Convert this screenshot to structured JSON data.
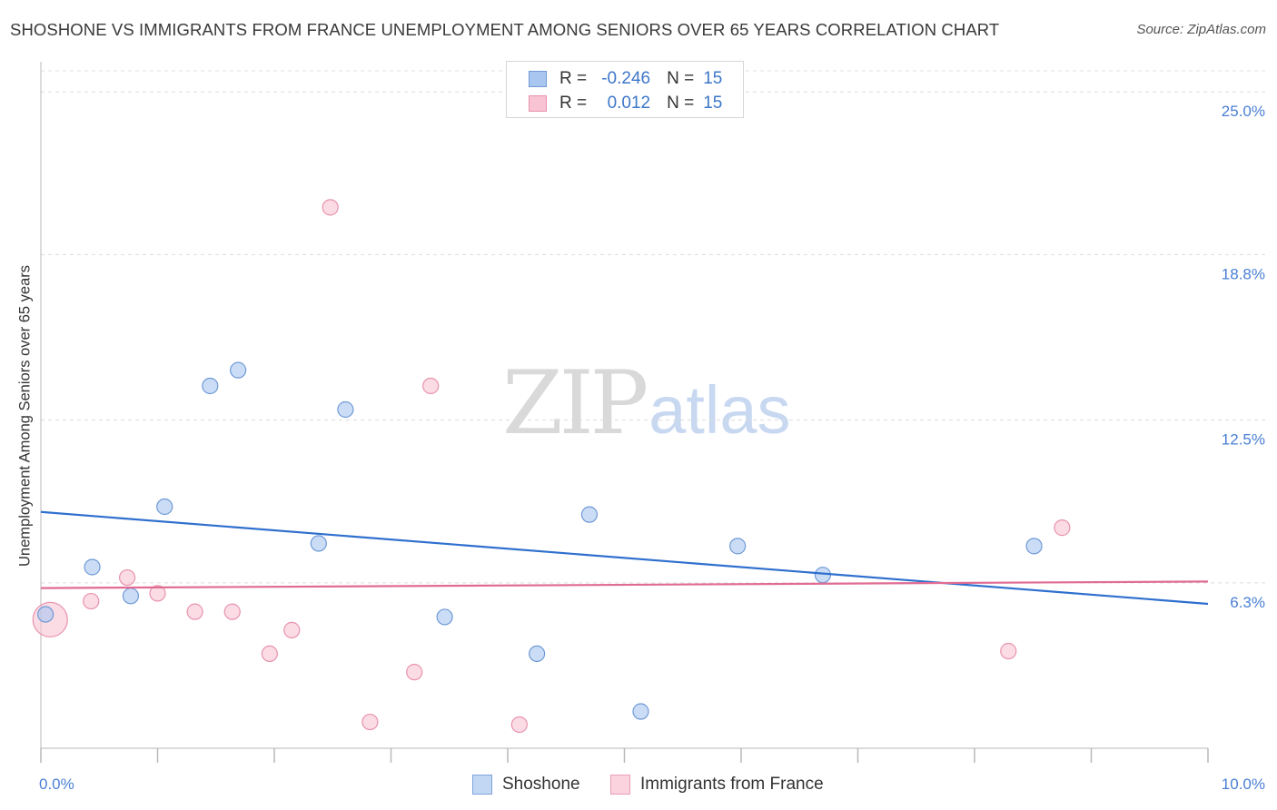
{
  "title": "SHOSHONE VS IMMIGRANTS FROM FRANCE UNEMPLOYMENT AMONG SENIORS OVER 65 YEARS CORRELATION CHART",
  "source": "Source: ZipAtlas.com",
  "watermark": {
    "zip": "ZIP",
    "atlas": "atlas"
  },
  "legend": {
    "rows": [
      {
        "r_label": "R =",
        "r_value": "-0.246",
        "n_label": "N =",
        "n_value": "15",
        "color": "#a9c6f0",
        "border": "#6f9ad6"
      },
      {
        "r_label": "R =",
        "r_value": "0.012",
        "n_label": "N =",
        "n_value": "15",
        "color": "#f8c4d4",
        "border": "#e892ad"
      }
    ]
  },
  "bottom_legend": {
    "items": [
      {
        "label": "Shoshone",
        "color": "#c2d7f4",
        "border": "#7ea4dc"
      },
      {
        "label": "Immigrants from France",
        "color": "#fbd3df",
        "border": "#ea9db4"
      }
    ]
  },
  "chart_data": {
    "type": "scatter",
    "title": "SHOSHONE VS IMMIGRANTS FROM FRANCE UNEMPLOYMENT AMONG SENIORS OVER 65 YEARS CORRELATION CHART",
    "xlabel": "",
    "ylabel": "Unemployment Among Seniors over 65 years",
    "xlim": [
      0,
      10
    ],
    "ylim": [
      0,
      25.8
    ],
    "x_tick_labels": [
      "0.0%",
      "10.0%"
    ],
    "y_ticks": [
      6.3,
      12.5,
      18.8,
      25.0
    ],
    "y_tick_labels": [
      "6.3%",
      "12.5%",
      "18.8%",
      "25.0%"
    ],
    "grid": true,
    "series": [
      {
        "name": "Shoshone",
        "color": "#a9c6f0",
        "stroke": "#6f9ad6",
        "line_color": "#2f6fce",
        "points": [
          {
            "x": 0.04,
            "y": 5.1
          },
          {
            "x": 0.44,
            "y": 6.9
          },
          {
            "x": 0.77,
            "y": 5.8
          },
          {
            "x": 1.06,
            "y": 9.2
          },
          {
            "x": 1.45,
            "y": 13.8
          },
          {
            "x": 1.69,
            "y": 14.4
          },
          {
            "x": 2.38,
            "y": 7.8
          },
          {
            "x": 2.61,
            "y": 12.9
          },
          {
            "x": 3.46,
            "y": 5.0
          },
          {
            "x": 4.25,
            "y": 3.6
          },
          {
            "x": 4.7,
            "y": 8.9
          },
          {
            "x": 5.14,
            "y": 1.4
          },
          {
            "x": 5.97,
            "y": 7.7
          },
          {
            "x": 6.7,
            "y": 6.6
          },
          {
            "x": 8.51,
            "y": 7.7
          }
        ],
        "trend": {
          "x": [
            0,
            10
          ],
          "y": [
            9.0,
            5.5
          ]
        }
      },
      {
        "name": "Immigrants from France",
        "color": "#f8c4d4",
        "stroke": "#e892ad",
        "line_color": "#e06c92",
        "points": [
          {
            "x": 0.08,
            "y": 4.9,
            "size": "large"
          },
          {
            "x": 0.43,
            "y": 5.6
          },
          {
            "x": 0.74,
            "y": 6.5
          },
          {
            "x": 1.0,
            "y": 5.9
          },
          {
            "x": 1.32,
            "y": 5.2
          },
          {
            "x": 1.64,
            "y": 5.2
          },
          {
            "x": 1.96,
            "y": 3.6
          },
          {
            "x": 2.15,
            "y": 4.5
          },
          {
            "x": 2.48,
            "y": 20.6
          },
          {
            "x": 2.82,
            "y": 1.0
          },
          {
            "x": 3.2,
            "y": 2.9
          },
          {
            "x": 3.34,
            "y": 13.8
          },
          {
            "x": 4.1,
            "y": 0.9
          },
          {
            "x": 8.29,
            "y": 3.7
          },
          {
            "x": 8.75,
            "y": 8.4
          }
        ],
        "trend": {
          "x": [
            0,
            10
          ],
          "y": [
            6.1,
            6.35
          ]
        }
      }
    ]
  }
}
